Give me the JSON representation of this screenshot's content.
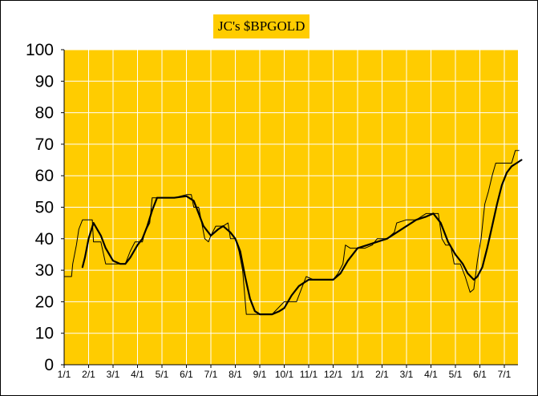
{
  "chart_data": {
    "type": "line",
    "title": "JC's $BPGOLD",
    "xlabel": "",
    "ylabel": "",
    "ylim": [
      0,
      100
    ],
    "yticks": [
      0,
      10,
      20,
      30,
      40,
      50,
      60,
      70,
      80,
      90,
      100
    ],
    "xtick_labels": [
      "1/1",
      "2/1",
      "3/1",
      "4/1",
      "5/1",
      "6/1",
      "7/1",
      "8/1",
      "9/1",
      "10/1",
      "11/1",
      "12/1",
      "1/1",
      "2/1",
      "3/1",
      "4/1",
      "5/1",
      "6/1",
      "7/1"
    ],
    "grid": true,
    "colors": {
      "plot_background": "#ffcc00",
      "grid": "#ffffff",
      "line": "#000000"
    },
    "series": [
      {
        "style": "thin-step",
        "points": [
          [
            0.0,
            28
          ],
          [
            0.3,
            28
          ],
          [
            0.35,
            32
          ],
          [
            0.5,
            38
          ],
          [
            0.6,
            43
          ],
          [
            0.75,
            46
          ],
          [
            1.0,
            46
          ],
          [
            1.15,
            46
          ],
          [
            1.2,
            39
          ],
          [
            1.5,
            39
          ],
          [
            1.7,
            32
          ],
          [
            2.0,
            32
          ],
          [
            2.3,
            32
          ],
          [
            2.5,
            32
          ],
          [
            2.7,
            36
          ],
          [
            2.9,
            39
          ],
          [
            3.2,
            39
          ],
          [
            3.3,
            42
          ],
          [
            3.5,
            45
          ],
          [
            3.6,
            53
          ],
          [
            4.0,
            53
          ],
          [
            4.5,
            53
          ],
          [
            5.0,
            54
          ],
          [
            5.2,
            54
          ],
          [
            5.3,
            50
          ],
          [
            5.5,
            50
          ],
          [
            5.75,
            40
          ],
          [
            5.9,
            39
          ],
          [
            6.0,
            41
          ],
          [
            6.2,
            44
          ],
          [
            6.5,
            44
          ],
          [
            6.7,
            45
          ],
          [
            6.8,
            40
          ],
          [
            7.0,
            40
          ],
          [
            7.15,
            36
          ],
          [
            7.3,
            30
          ],
          [
            7.45,
            16
          ],
          [
            8.0,
            16
          ],
          [
            8.5,
            16
          ],
          [
            9.0,
            20
          ],
          [
            9.5,
            20
          ],
          [
            9.7,
            24
          ],
          [
            9.9,
            28
          ],
          [
            10.2,
            27
          ],
          [
            10.5,
            27
          ],
          [
            11.0,
            27
          ],
          [
            11.2,
            29
          ],
          [
            11.4,
            32
          ],
          [
            11.5,
            38
          ],
          [
            11.7,
            37
          ],
          [
            12.0,
            37
          ],
          [
            12.3,
            37
          ],
          [
            12.6,
            38
          ],
          [
            12.8,
            40
          ],
          [
            13.2,
            40
          ],
          [
            13.5,
            42
          ],
          [
            13.6,
            45
          ],
          [
            14.0,
            46
          ],
          [
            14.4,
            46
          ],
          [
            14.8,
            48
          ],
          [
            15.0,
            48
          ],
          [
            15.3,
            48
          ],
          [
            15.45,
            40
          ],
          [
            15.6,
            38
          ],
          [
            15.8,
            38
          ],
          [
            15.95,
            32
          ],
          [
            16.2,
            32
          ],
          [
            16.4,
            28
          ],
          [
            16.6,
            23
          ],
          [
            16.75,
            24
          ],
          [
            16.9,
            33
          ],
          [
            17.05,
            40
          ],
          [
            17.2,
            51
          ],
          [
            17.35,
            55
          ],
          [
            17.5,
            60
          ],
          [
            17.65,
            64
          ],
          [
            18.0,
            64
          ],
          [
            18.3,
            64
          ],
          [
            18.45,
            68
          ],
          [
            18.6,
            68
          ]
        ]
      },
      {
        "style": "thick-smooth",
        "points": [
          [
            0.75,
            31
          ],
          [
            0.85,
            34
          ],
          [
            1.0,
            40
          ],
          [
            1.2,
            45
          ],
          [
            1.5,
            41
          ],
          [
            1.7,
            37
          ],
          [
            2.0,
            33
          ],
          [
            2.3,
            32
          ],
          [
            2.5,
            32
          ],
          [
            2.7,
            34
          ],
          [
            3.0,
            38
          ],
          [
            3.2,
            40
          ],
          [
            3.4,
            44
          ],
          [
            3.6,
            49
          ],
          [
            3.8,
            53
          ],
          [
            4.0,
            53
          ],
          [
            4.5,
            53
          ],
          [
            5.0,
            53.5
          ],
          [
            5.3,
            52
          ],
          [
            5.5,
            48
          ],
          [
            5.7,
            44
          ],
          [
            6.0,
            41
          ],
          [
            6.3,
            43
          ],
          [
            6.5,
            44
          ],
          [
            6.8,
            42
          ],
          [
            7.0,
            40
          ],
          [
            7.2,
            36
          ],
          [
            7.4,
            28
          ],
          [
            7.6,
            21
          ],
          [
            7.8,
            17
          ],
          [
            8.0,
            16
          ],
          [
            8.5,
            16
          ],
          [
            8.8,
            17
          ],
          [
            9.0,
            18
          ],
          [
            9.3,
            22
          ],
          [
            9.6,
            25
          ],
          [
            10.0,
            27
          ],
          [
            10.5,
            27
          ],
          [
            11.0,
            27
          ],
          [
            11.3,
            29
          ],
          [
            11.6,
            33
          ],
          [
            12.0,
            37
          ],
          [
            12.4,
            38
          ],
          [
            12.8,
            39
          ],
          [
            13.2,
            40
          ],
          [
            13.6,
            42
          ],
          [
            14.0,
            44
          ],
          [
            14.4,
            46
          ],
          [
            14.8,
            47
          ],
          [
            15.1,
            48
          ],
          [
            15.4,
            45
          ],
          [
            15.7,
            39
          ],
          [
            16.0,
            35
          ],
          [
            16.3,
            32
          ],
          [
            16.5,
            29
          ],
          [
            16.75,
            27
          ],
          [
            16.9,
            28
          ],
          [
            17.1,
            31
          ],
          [
            17.3,
            37
          ],
          [
            17.5,
            44
          ],
          [
            17.7,
            51
          ],
          [
            17.9,
            57
          ],
          [
            18.1,
            61
          ],
          [
            18.3,
            63
          ],
          [
            18.5,
            64
          ],
          [
            18.7,
            65
          ]
        ]
      }
    ]
  }
}
